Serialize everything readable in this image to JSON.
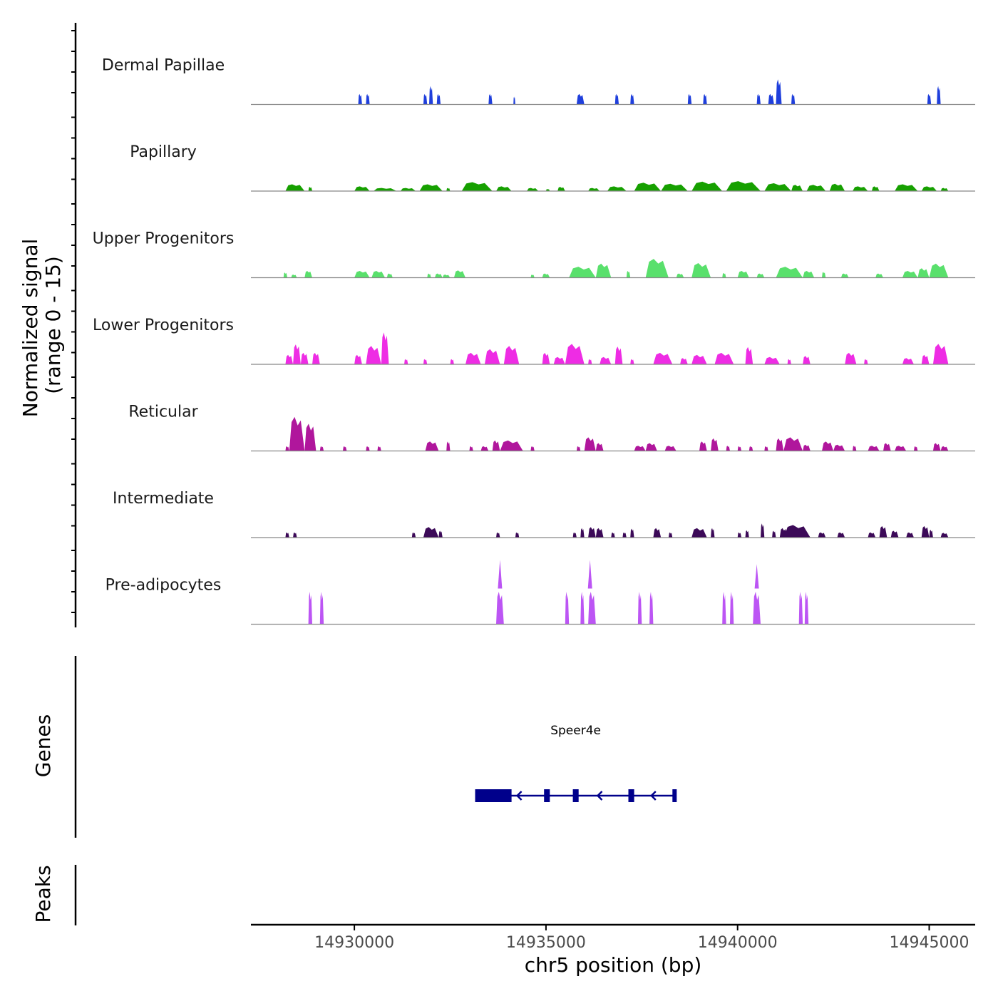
{
  "chart_data": {
    "type": "area",
    "title": "",
    "chromosome": "chr5",
    "xlabel": "chr5 position (bp)",
    "ylabel_line1": "Normalized signal",
    "ylabel_line2": "(range 0 - 15)",
    "xlim": [
      14927300,
      14946200
    ],
    "xticks": [
      14930000,
      14935000,
      14940000,
      14945000
    ],
    "xtick_labels": [
      "14930000",
      "14935000",
      "14940000",
      "14945000"
    ],
    "y_range": [
      0,
      15
    ],
    "tracks": [
      {
        "name": "Dermal Papillae",
        "color": "#1f3fdc",
        "blocks": [
          [
            14930100,
            14930200,
            2
          ],
          [
            14930300,
            14930400,
            2
          ],
          [
            14931800,
            14931900,
            2
          ],
          [
            14931950,
            14932050,
            3.5
          ],
          [
            14932150,
            14932250,
            2
          ],
          [
            14933500,
            14933600,
            2
          ],
          [
            14934150,
            14934200,
            1.5
          ],
          [
            14935800,
            14936000,
            2
          ],
          [
            14936800,
            14936900,
            2
          ],
          [
            14937200,
            14937300,
            2
          ],
          [
            14938700,
            14938800,
            2
          ],
          [
            14939100,
            14939200,
            2
          ],
          [
            14940500,
            14940600,
            2
          ],
          [
            14940800,
            14940950,
            2
          ],
          [
            14941000,
            14941150,
            4.8
          ],
          [
            14941400,
            14941500,
            2
          ],
          [
            14944950,
            14945050,
            2
          ],
          [
            14945200,
            14945300,
            3.5
          ]
        ]
      },
      {
        "name": "Papillary",
        "color": "#16a000",
        "blocks": [
          [
            14928200,
            14928700,
            1.3
          ],
          [
            14928800,
            14928900,
            0.8
          ],
          [
            14930000,
            14930400,
            0.9
          ],
          [
            14930500,
            14931100,
            0.6
          ],
          [
            14931200,
            14931600,
            0.6
          ],
          [
            14931700,
            14932300,
            1.3
          ],
          [
            14932400,
            14932500,
            0.6
          ],
          [
            14932800,
            14933600,
            1.7
          ],
          [
            14933700,
            14934100,
            0.9
          ],
          [
            14934500,
            14934800,
            0.6
          ],
          [
            14935000,
            14935100,
            0.4
          ],
          [
            14935300,
            14935500,
            0.8
          ],
          [
            14936100,
            14936400,
            0.6
          ],
          [
            14936600,
            14937100,
            0.9
          ],
          [
            14937300,
            14938000,
            1.6
          ],
          [
            14938000,
            14938700,
            1.4
          ],
          [
            14938800,
            14939600,
            1.8
          ],
          [
            14939700,
            14940600,
            1.9
          ],
          [
            14940700,
            14941400,
            1.5
          ],
          [
            14941400,
            14941700,
            1.2
          ],
          [
            14941800,
            14942300,
            1.2
          ],
          [
            14942400,
            14942800,
            1.4
          ],
          [
            14943000,
            14943400,
            0.9
          ],
          [
            14943500,
            14943700,
            0.9
          ],
          [
            14944100,
            14944700,
            1.3
          ],
          [
            14944800,
            14945200,
            0.9
          ],
          [
            14945300,
            14945500,
            0.6
          ]
        ]
      },
      {
        "name": "Upper Progenitors",
        "color": "#59e06c",
        "blocks": [
          [
            14928150,
            14928250,
            1
          ],
          [
            14928350,
            14928500,
            0.6
          ],
          [
            14928700,
            14928900,
            1.3
          ],
          [
            14930000,
            14930400,
            1.3
          ],
          [
            14930450,
            14930800,
            1.3
          ],
          [
            14930850,
            14931000,
            0.8
          ],
          [
            14931900,
            14932000,
            0.8
          ],
          [
            14932100,
            14932300,
            0.8
          ],
          [
            14932300,
            14932500,
            0.6
          ],
          [
            14932600,
            14932900,
            1.4
          ],
          [
            14934600,
            14934700,
            0.6
          ],
          [
            14934900,
            14935100,
            0.8
          ],
          [
            14935600,
            14936300,
            2.1
          ],
          [
            14936300,
            14936700,
            2.7
          ],
          [
            14937100,
            14937200,
            1.3
          ],
          [
            14937600,
            14938200,
            3.6
          ],
          [
            14938400,
            14938600,
            0.8
          ],
          [
            14938800,
            14939300,
            2.8
          ],
          [
            14939600,
            14939700,
            0.9
          ],
          [
            14940000,
            14940300,
            1.3
          ],
          [
            14940500,
            14940700,
            0.8
          ],
          [
            14941000,
            14941700,
            2.1
          ],
          [
            14941700,
            14942000,
            1.3
          ],
          [
            14942200,
            14942300,
            1.1
          ],
          [
            14942700,
            14942900,
            0.8
          ],
          [
            14943600,
            14943800,
            0.8
          ],
          [
            14944300,
            14944700,
            1.3
          ],
          [
            14944700,
            14945000,
            1.8
          ],
          [
            14945000,
            14945500,
            2.7
          ]
        ]
      },
      {
        "name": "Lower Progenitors",
        "color": "#ee2ce4",
        "blocks": [
          [
            14928200,
            14928400,
            1.8
          ],
          [
            14928400,
            14928600,
            3.8
          ],
          [
            14928600,
            14928800,
            2.2
          ],
          [
            14928900,
            14929100,
            2.2
          ],
          [
            14930000,
            14930200,
            1.8
          ],
          [
            14930300,
            14930700,
            3.5
          ],
          [
            14930700,
            14930900,
            6.1
          ],
          [
            14931300,
            14931400,
            1
          ],
          [
            14931800,
            14931900,
            1
          ],
          [
            14932500,
            14932600,
            1
          ],
          [
            14932900,
            14933300,
            2.2
          ],
          [
            14933400,
            14933800,
            2.9
          ],
          [
            14933900,
            14934300,
            3.5
          ],
          [
            14934900,
            14935100,
            2.2
          ],
          [
            14935200,
            14935500,
            1.4
          ],
          [
            14935500,
            14936000,
            3.9
          ],
          [
            14936100,
            14936200,
            1
          ],
          [
            14936400,
            14936700,
            1.4
          ],
          [
            14936800,
            14937000,
            3.4
          ],
          [
            14937200,
            14937300,
            1
          ],
          [
            14937800,
            14938300,
            2.2
          ],
          [
            14938500,
            14938700,
            1.2
          ],
          [
            14938800,
            14939200,
            1.8
          ],
          [
            14939400,
            14939900,
            2.2
          ],
          [
            14940200,
            14940400,
            3.3
          ],
          [
            14940700,
            14941100,
            1.4
          ],
          [
            14941300,
            14941400,
            1
          ],
          [
            14941700,
            14941900,
            1.6
          ],
          [
            14942800,
            14943100,
            2.2
          ],
          [
            14943300,
            14943400,
            1
          ],
          [
            14944300,
            14944600,
            1.2
          ],
          [
            14944800,
            14945000,
            1.8
          ],
          [
            14945100,
            14945500,
            3.9
          ]
        ]
      },
      {
        "name": "Reticular",
        "color": "#b0169c",
        "blocks": [
          [
            14928200,
            14928300,
            0.9
          ],
          [
            14928300,
            14928700,
            6.5
          ],
          [
            14928700,
            14929000,
            5.2
          ],
          [
            14929100,
            14929200,
            0.9
          ],
          [
            14929700,
            14929800,
            0.9
          ],
          [
            14930300,
            14930400,
            0.9
          ],
          [
            14930600,
            14930700,
            0.9
          ],
          [
            14931850,
            14932200,
            1.8
          ],
          [
            14932400,
            14932500,
            1.8
          ],
          [
            14933000,
            14933100,
            0.9
          ],
          [
            14933300,
            14933500,
            0.9
          ],
          [
            14933600,
            14933800,
            2
          ],
          [
            14933800,
            14934400,
            2
          ],
          [
            14934600,
            14934700,
            0.9
          ],
          [
            14935800,
            14935900,
            0.9
          ],
          [
            14936000,
            14936300,
            2.6
          ],
          [
            14936300,
            14936500,
            1.5
          ],
          [
            14937300,
            14937600,
            1
          ],
          [
            14937600,
            14937900,
            1.5
          ],
          [
            14938100,
            14938400,
            1
          ],
          [
            14939000,
            14939200,
            1.8
          ],
          [
            14939300,
            14939500,
            2.4
          ],
          [
            14939700,
            14939800,
            1
          ],
          [
            14940000,
            14940100,
            0.9
          ],
          [
            14940300,
            14940400,
            0.9
          ],
          [
            14940700,
            14940800,
            0.9
          ],
          [
            14941000,
            14941200,
            2.4
          ],
          [
            14941200,
            14941700,
            2.6
          ],
          [
            14941700,
            14941900,
            1.2
          ],
          [
            14942200,
            14942500,
            1.8
          ],
          [
            14942500,
            14942800,
            1.2
          ],
          [
            14943000,
            14943100,
            1
          ],
          [
            14943400,
            14943700,
            1
          ],
          [
            14943800,
            14944000,
            1.5
          ],
          [
            14944100,
            14944400,
            1
          ],
          [
            14944600,
            14944700,
            0.9
          ],
          [
            14945100,
            14945300,
            1.5
          ],
          [
            14945300,
            14945500,
            0.9
          ]
        ]
      },
      {
        "name": "Intermediate",
        "color": "#3c0a58",
        "blocks": [
          [
            14928200,
            14928300,
            1
          ],
          [
            14928400,
            14928500,
            1
          ],
          [
            14931500,
            14931600,
            1
          ],
          [
            14931800,
            14932200,
            2
          ],
          [
            14932200,
            14932300,
            1.3
          ],
          [
            14933700,
            14933800,
            1
          ],
          [
            14934200,
            14934300,
            1
          ],
          [
            14935700,
            14935800,
            1
          ],
          [
            14935900,
            14936000,
            1.8
          ],
          [
            14936100,
            14936300,
            2
          ],
          [
            14936300,
            14936500,
            1.8
          ],
          [
            14936700,
            14936800,
            1
          ],
          [
            14937000,
            14937100,
            1
          ],
          [
            14937200,
            14937300,
            1.7
          ],
          [
            14937800,
            14938000,
            1.8
          ],
          [
            14938200,
            14938300,
            1
          ],
          [
            14938800,
            14939200,
            1.8
          ],
          [
            14939300,
            14939400,
            1.8
          ],
          [
            14940000,
            14940100,
            1
          ],
          [
            14940200,
            14940300,
            1.4
          ],
          [
            14940600,
            14940700,
            2.7
          ],
          [
            14940900,
            14941000,
            1.3
          ],
          [
            14941100,
            14941300,
            1.8
          ],
          [
            14941400,
            14941500,
            1.8
          ],
          [
            14941200,
            14941900,
            2.4
          ],
          [
            14942100,
            14942300,
            1
          ],
          [
            14942600,
            14942800,
            1
          ],
          [
            14943400,
            14943600,
            1
          ],
          [
            14943700,
            14943900,
            2.2
          ],
          [
            14944000,
            14944200,
            1.3
          ],
          [
            14944400,
            14944600,
            1
          ],
          [
            14944800,
            14945000,
            2.2
          ],
          [
            14945000,
            14945100,
            1.5
          ],
          [
            14945300,
            14945500,
            0.9
          ]
        ]
      },
      {
        "name": "Pre-adipocytes",
        "color": "#bc55f4",
        "blocks": [
          [
            14928800,
            14928900,
            6.2
          ],
          [
            14929100,
            14929200,
            6.2
          ],
          [
            14933700,
            14933900,
            6.2
          ],
          [
            14935500,
            14935600,
            6.2
          ],
          [
            14935900,
            14936000,
            6.2
          ],
          [
            14936100,
            14936300,
            6.2
          ],
          [
            14937400,
            14937500,
            6.2
          ],
          [
            14937700,
            14937800,
            6.2
          ],
          [
            14939600,
            14939700,
            6.2
          ],
          [
            14939800,
            14939900,
            6.2
          ],
          [
            14940400,
            14940600,
            6.2
          ],
          [
            14941600,
            14941700,
            6.2
          ],
          [
            14941750,
            14941850,
            6.2
          ]
        ],
        "spikes": [
          [
            14933800,
            12.3
          ],
          [
            14936150,
            12.3
          ],
          [
            14940500,
            11.5
          ]
        ]
      }
    ],
    "gene_track_label": "Genes",
    "genes": [
      {
        "name": "Speer4e",
        "strand": "-",
        "start": 14933150,
        "end": 14938400,
        "exons": [
          [
            14933150,
            14934100
          ],
          [
            14934950,
            14935100
          ],
          [
            14935700,
            14935850
          ],
          [
            14937150,
            14937300
          ],
          [
            14938300,
            14938400
          ]
        ]
      }
    ],
    "peak_track_label": "Peaks",
    "peaks": []
  }
}
